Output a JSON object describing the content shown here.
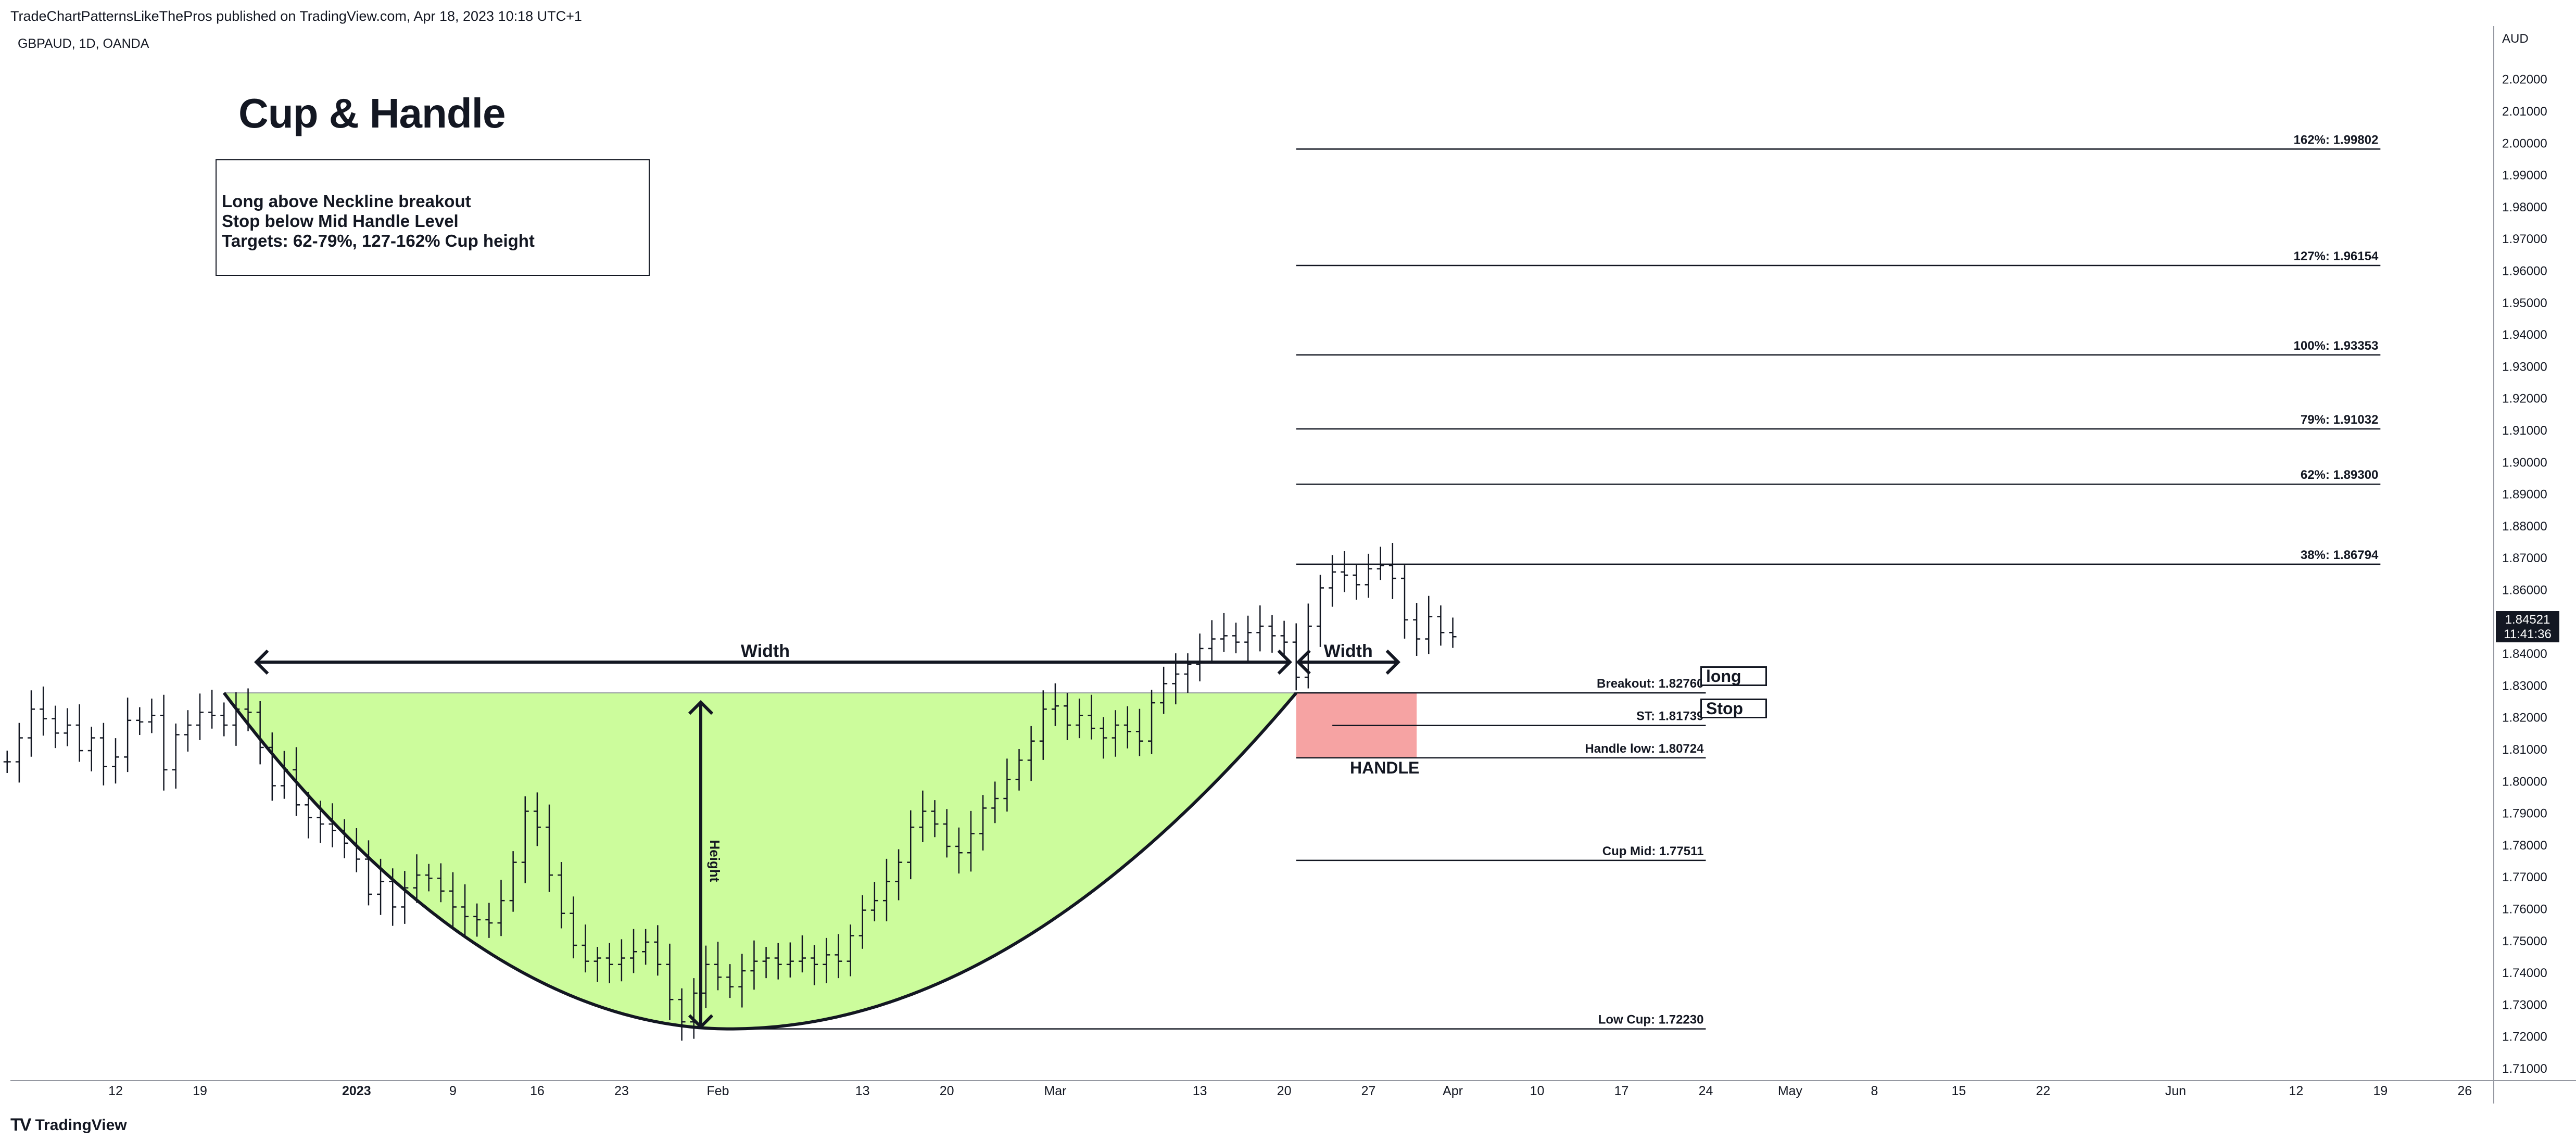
{
  "header": {
    "publisher": "TradeChartPatternsLikeThePros published on TradingView.com, Apr 18, 2023 10:18 UTC+1",
    "symbol": "GBPAUD, 1D, OANDA"
  },
  "footer": {
    "logo_mark": "TV",
    "logo_text": "TradingView"
  },
  "title": "Cup & Handle",
  "notes": [
    "Long above Neckline breakout",
    "Stop below Mid Handle Level",
    "Targets: 62-79%, 127-162% Cup height"
  ],
  "tags": {
    "long": "long",
    "stop": "Stop"
  },
  "price_badge": {
    "price": "1.84521",
    "countdown": "11:41:36"
  },
  "colors": {
    "cup_fill": "#ccfc9c",
    "handle_fill": "#f6a3a3",
    "line": "#131722",
    "grid_text": "#131722",
    "axis": "#9598a1"
  },
  "chart_data": {
    "type": "ohlc",
    "symbol": "GBPAUD",
    "timeframe": "1D",
    "currency_label": "AUD",
    "ylim": [
      1.7,
      2.025
    ],
    "y_ticks": [
      "1.71000",
      "1.72000",
      "1.73000",
      "1.74000",
      "1.75000",
      "1.76000",
      "1.77000",
      "1.78000",
      "1.79000",
      "1.80000",
      "1.81000",
      "1.82000",
      "1.83000",
      "1.84000",
      "1.85000",
      "1.86000",
      "1.87000",
      "1.88000",
      "1.89000",
      "1.90000",
      "1.91000",
      "1.92000",
      "1.93000",
      "1.94000",
      "1.95000",
      "1.96000",
      "1.97000",
      "1.98000",
      "1.99000",
      "2.00000",
      "2.01000",
      "2.02000"
    ],
    "x_ticks": [
      {
        "day": 0,
        "label": "12"
      },
      {
        "day": 7,
        "label": "19"
      },
      {
        "day": 20,
        "label": "2023",
        "bold": true
      },
      {
        "day": 28,
        "label": "9"
      },
      {
        "day": 35,
        "label": "16"
      },
      {
        "day": 42,
        "label": "23"
      },
      {
        "day": 50,
        "label": "Feb"
      },
      {
        "day": 62,
        "label": "13"
      },
      {
        "day": 69,
        "label": "20"
      },
      {
        "day": 78,
        "label": "Mar"
      },
      {
        "day": 90,
        "label": "13"
      },
      {
        "day": 97,
        "label": "20"
      },
      {
        "day": 104,
        "label": "27"
      },
      {
        "day": 111,
        "label": "Apr"
      },
      {
        "day": 118,
        "label": "10"
      },
      {
        "day": 125,
        "label": "17"
      },
      {
        "day": 132,
        "label": "24"
      },
      {
        "day": 139,
        "label": "May"
      },
      {
        "day": 146,
        "label": "8"
      },
      {
        "day": 153,
        "label": "15"
      },
      {
        "day": 160,
        "label": "22"
      },
      {
        "day": 171,
        "label": "Jun"
      },
      {
        "day": 181,
        "label": "12"
      },
      {
        "day": 188,
        "label": "19"
      },
      {
        "day": 195,
        "label": "26"
      }
    ],
    "bars_start_day": -9,
    "closes": [
      1.806,
      1.8135,
      1.8225,
      1.8195,
      1.815,
      1.8175,
      1.8095,
      1.8135,
      1.8045,
      1.8075,
      1.819,
      1.8185,
      1.8205,
      1.8035,
      1.8145,
      1.8175,
      1.8215,
      1.8205,
      1.8175,
      1.8225,
      1.8215,
      1.8105,
      1.7985,
      1.8035,
      1.7925,
      1.7885,
      1.7865,
      1.7845,
      1.7805,
      1.7755,
      1.7645,
      1.7685,
      1.7605,
      1.7665,
      1.7705,
      1.7695,
      1.7655,
      1.7605,
      1.7575,
      1.7565,
      1.7555,
      1.7625,
      1.7745,
      1.7905,
      1.7855,
      1.7705,
      1.7585,
      1.7485,
      1.7435,
      1.7445,
      1.7425,
      1.7445,
      1.7465,
      1.7495,
      1.7425,
      1.7315,
      1.7245,
      1.7335,
      1.7425,
      1.7385,
      1.7355,
      1.7405,
      1.7435,
      1.7445,
      1.7425,
      1.7435,
      1.7445,
      1.7425,
      1.7455,
      1.7435,
      1.7515,
      1.7595,
      1.7625,
      1.7685,
      1.7745,
      1.7855,
      1.7905,
      1.7865,
      1.7795,
      1.7775,
      1.7835,
      1.7915,
      1.7945,
      1.8005,
      1.8065,
      1.8125,
      1.8225,
      1.8235,
      1.8175,
      1.8205,
      1.8165,
      1.8135,
      1.8175,
      1.8155,
      1.8125,
      1.8245,
      1.8305,
      1.8335,
      1.8365,
      1.8415,
      1.8445,
      1.8455,
      1.8435,
      1.8465,
      1.8485,
      1.8455,
      1.8435,
      1.8325,
      1.8485,
      1.8605,
      1.8655,
      1.8645,
      1.8615,
      1.8665,
      1.8675,
      1.8635,
      1.8505,
      1.8445,
      1.8515,
      1.8465,
      1.8452
    ],
    "cup": {
      "start_day": 9,
      "bottom_day": 51,
      "end_day": 98,
      "rim": 1.8276,
      "low": 1.7223
    },
    "annotations": {
      "width_label": "Width",
      "handle_width_label": "Width",
      "height_label": "Height",
      "handle_label": "HANDLE"
    },
    "handle_zone": {
      "x_from_day": 98,
      "x_to_day": 108,
      "top": 1.8276,
      "bottom": 1.8072
    },
    "levels": [
      {
        "name": "162%",
        "value": 1.99802,
        "label": "162%: 1.99802",
        "group": "targets"
      },
      {
        "name": "127%",
        "value": 1.96154,
        "label": "127%: 1.96154",
        "group": "targets"
      },
      {
        "name": "100%",
        "value": 1.93353,
        "label": "100%: 1.93353",
        "group": "targets"
      },
      {
        "name": "79%",
        "value": 1.91032,
        "label": "79%: 1.91032",
        "group": "targets"
      },
      {
        "name": "62%",
        "value": 1.893,
        "label": "62%: 1.89300",
        "group": "targets"
      },
      {
        "name": "38%",
        "value": 1.86794,
        "label": "38%: 1.86794",
        "group": "targets"
      },
      {
        "name": "Breakout",
        "value": 1.8276,
        "label": "Breakout: 1.82760",
        "group": "structure"
      },
      {
        "name": "ST",
        "value": 1.81739,
        "label": "ST: 1.81739",
        "group": "stop"
      },
      {
        "name": "Handle low",
        "value": 1.80724,
        "label": "Handle low: 1.80724",
        "group": "structure"
      },
      {
        "name": "Cup Mid",
        "value": 1.77511,
        "label": "Cup Mid: 1.77511",
        "group": "structure"
      },
      {
        "name": "Low Cup",
        "value": 1.7223,
        "label": "Low Cup: 1.72230",
        "group": "lowcup"
      }
    ]
  }
}
